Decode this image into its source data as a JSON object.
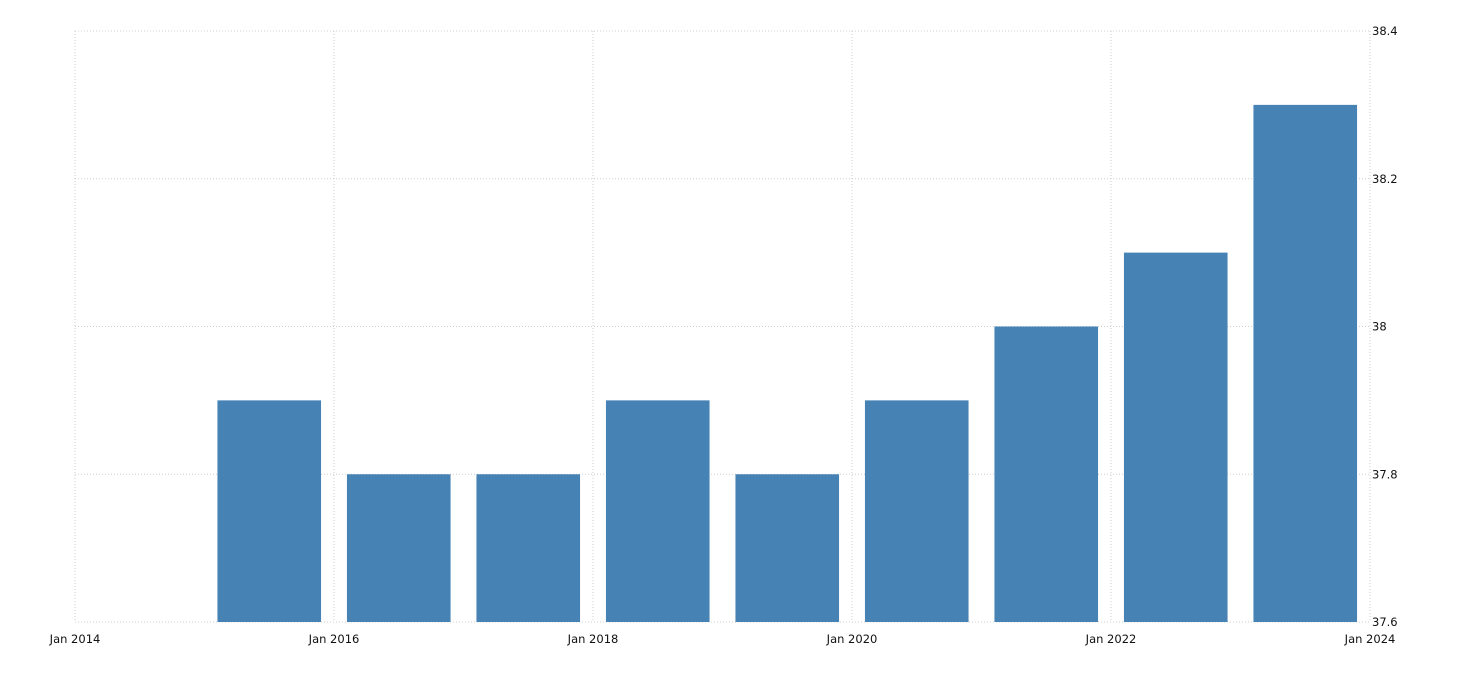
{
  "chart_data": {
    "type": "bar",
    "title": "",
    "xlabel": "",
    "ylabel": "",
    "color": "#4682b4",
    "x_ticks": [
      "Jan 2014",
      "Jan 2016",
      "Jan 2018",
      "Jan 2020",
      "Jan 2022",
      "Jan 2024"
    ],
    "y_ticks": [
      "37.6",
      "37.8",
      "38",
      "38.2",
      "38.4"
    ],
    "ylim": [
      37.6,
      38.4
    ],
    "xlim": [
      "2014-01",
      "2024-01"
    ],
    "y_axis_side": "right",
    "grid": true,
    "categories": [
      "2015",
      "2016",
      "2017",
      "2018",
      "2019",
      "2020",
      "2021",
      "2022",
      "2023"
    ],
    "values": [
      37.9,
      37.8,
      37.8,
      37.9,
      37.8,
      37.9,
      38.0,
      38.1,
      38.3
    ]
  }
}
